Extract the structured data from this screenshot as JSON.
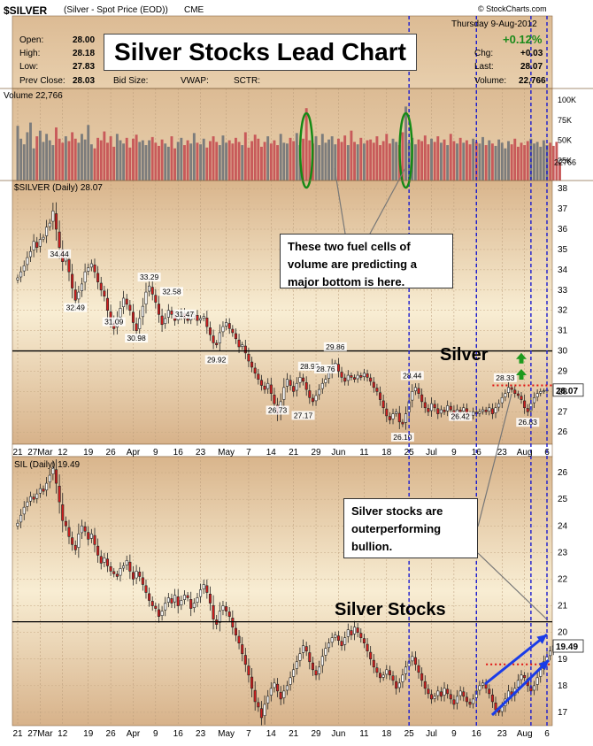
{
  "header": {
    "symbol": "$SILVER",
    "description": "(Silver - Spot Price (EOD))",
    "exchange": "CME",
    "source": "© StockCharts.com",
    "date": "Thursday  9-Aug-2012",
    "open_label": "Open:",
    "open": "28.00",
    "high_label": "High:",
    "high": "28.18",
    "low_label": "Low:",
    "low": "27.83",
    "prev_label": "Prev Close:",
    "prev": "28.03",
    "bid_label": "Bid Size:",
    "vwap_label": "VWAP:",
    "sctr_label": "SCTR:",
    "change_pct": "+0.12%",
    "chg_label": "Chg:",
    "chg": "+0.03",
    "last_label": "Last:",
    "last": "28.07",
    "volume_label": "Volume:",
    "volume": "22,766"
  },
  "title": "Silver Stocks Lead Chart",
  "callouts": {
    "volume": "These two fuel cells of volume are predicting a major bottom is here.",
    "stocks": "Silver stocks are outerperforming bullion.",
    "silver_label": "Silver",
    "stocks_label": "Silver Stocks"
  },
  "panels": {
    "volume_label": "Volume 22,766",
    "volume_last": "22766",
    "silver_label": "$SILVER (Daily) 28.07",
    "silver_last": "28.07",
    "sil_label": "SIL (Daily) 19.49",
    "sil_last": "19.49"
  },
  "colors": {
    "background_band": "#d8b68e",
    "panel_tint_light": "#f7ecd0",
    "up_candle": "#ffffff",
    "down_candle": "#d01e1e",
    "volume_up": "#7c7c7c",
    "volume_down": "#c85a5a",
    "dashed_blue": "#1a1ad0",
    "green_ellipse": "#158a15",
    "arrow_blue": "#1a3ce8",
    "arrow_green": "#1d9a1d",
    "red_dotted": "#e01010"
  },
  "chart_data": [
    {
      "type": "bar",
      "name": "volume",
      "ylabel": "Volume",
      "ytick_labels": [
        "100K",
        "75K",
        "50K",
        "25K"
      ],
      "values": [
        68000,
        52000,
        45000,
        60000,
        72000,
        40000,
        55000,
        62000,
        48000,
        58000,
        50000,
        44000,
        66000,
        52000,
        47000,
        55000,
        49000,
        60000,
        52000,
        47000,
        58000,
        51000,
        69000,
        45000,
        40000,
        53000,
        50000,
        61000,
        47000,
        55000,
        42000,
        58000,
        50000,
        46000,
        53000,
        41000,
        52000,
        57000,
        48000,
        50000,
        44000,
        50000,
        54000,
        47000,
        43000,
        51000,
        46000,
        42000,
        55000,
        40000,
        48000,
        53000,
        44000,
        50000,
        46000,
        59000,
        47000,
        45000,
        52000,
        41000,
        49000,
        55000,
        48000,
        44000,
        56000,
        47000,
        50000,
        46000,
        53000,
        48000,
        44000,
        60000,
        41000,
        49000,
        57000,
        52000,
        42000,
        48000,
        55000,
        46000,
        50000,
        44000,
        58000,
        47000,
        46000,
        53000,
        49000,
        59000,
        44000,
        52000,
        90000,
        50000,
        46000,
        55000,
        44000,
        58000,
        47000,
        51000,
        55000,
        45000,
        52000,
        48000,
        56000,
        44000,
        62000,
        48000,
        45000,
        53000,
        46000,
        50000,
        51000,
        47000,
        55000,
        44000,
        49000,
        58000,
        46000,
        52000,
        48000,
        44000,
        60000,
        92000,
        47000,
        53000,
        45000,
        51000,
        49000,
        56000,
        45000,
        52000,
        48000,
        55000,
        47000,
        51000,
        44000,
        58000,
        49000,
        46000,
        53000,
        47000,
        50000,
        45000,
        52000,
        48000,
        46000,
        54000,
        44000,
        50000,
        46000,
        43000,
        51000,
        47000,
        40000,
        49000,
        45000,
        52000,
        42000,
        47000,
        44000,
        49000,
        52000,
        46000,
        48000,
        42000,
        50000,
        44000,
        47000,
        43000,
        48000,
        22766
      ]
    },
    {
      "type": "line",
      "name": "$SILVER (Daily)",
      "x_labels": [
        "21",
        "27Mar",
        "12",
        "19",
        "26",
        "Apr",
        "9",
        "16",
        "23",
        "May",
        "7",
        "14",
        "21",
        "29",
        "Jun",
        "11",
        "18",
        "25",
        "Jul",
        "9",
        "16",
        "23",
        "Aug",
        "6"
      ],
      "ylim": [
        25.4,
        38.4
      ],
      "ytick_labels": [
        "38",
        "37",
        "36",
        "35",
        "34",
        "33",
        "32",
        "31",
        "30",
        "29",
        "28",
        "27",
        "26"
      ],
      "annotations": [
        "34.44",
        "32.49",
        "33.29",
        "32.58",
        "31.09",
        "30.98",
        "31.47",
        "29.92",
        "29.86",
        "28.90",
        "28.76",
        "27.17",
        "26.73",
        "28.44",
        "28.33",
        "26.10",
        "26.42",
        "26.83"
      ],
      "reference_level": 30,
      "values": [
        33.6,
        33.9,
        34.2,
        34.6,
        34.9,
        35.4,
        35.1,
        35.5,
        35.6,
        36.1,
        36.3,
        36.9,
        36.0,
        35.1,
        34.4,
        34.6,
        33.9,
        33.1,
        32.5,
        32.9,
        33.3,
        33.9,
        34.1,
        34.3,
        33.9,
        33.4,
        33.0,
        32.7,
        32.0,
        31.5,
        31.1,
        31.6,
        32.1,
        32.6,
        32.3,
        32.0,
        31.4,
        31.0,
        31.6,
        32.2,
        32.9,
        33.2,
        32.8,
        32.4,
        31.8,
        31.3,
        31.6,
        32.0,
        31.8,
        31.5,
        31.7,
        31.9,
        31.6,
        31.5,
        31.7,
        31.8,
        31.5,
        31.6,
        31.7,
        31.2,
        30.8,
        30.4,
        30.3,
        30.9,
        31.2,
        31.4,
        31.1,
        30.9,
        30.6,
        30.2,
        30.3,
        29.9,
        29.5,
        29.2,
        28.9,
        28.6,
        28.3,
        28.1,
        28.4,
        27.9,
        27.4,
        26.9,
        27.5,
        28.2,
        28.6,
        28.3,
        28.0,
        28.4,
        28.7,
        28.5,
        28.1,
        27.7,
        27.5,
        27.8,
        28.1,
        28.4,
        28.6,
        28.9,
        29.3,
        29.4,
        29.0,
        28.7,
        28.5,
        28.8,
        28.7,
        28.6,
        28.8,
        28.7,
        28.9,
        28.7,
        28.5,
        28.2,
        28.0,
        27.6,
        27.2,
        26.8,
        26.6,
        26.9,
        27.0,
        26.5,
        26.4,
        26.9,
        27.5,
        28.0,
        28.2,
        27.9,
        27.5,
        27.2,
        27.0,
        27.4,
        27.2,
        26.9,
        27.1,
        27.0,
        27.3,
        27.1,
        26.8,
        27.1,
        27.0,
        27.2,
        26.9,
        26.8,
        27.0,
        26.9,
        27.0,
        27.1,
        27.0,
        27.2,
        26.9,
        27.2,
        27.4,
        27.7,
        27.9,
        28.2,
        28.1,
        27.9,
        27.8,
        27.6,
        27.2,
        27.0,
        27.4,
        27.7,
        27.9,
        28.0,
        28.03,
        28.07
      ]
    },
    {
      "type": "line",
      "name": "SIL (Daily)",
      "x_labels": [
        "21",
        "27Mar",
        "12",
        "19",
        "26",
        "Apr",
        "9",
        "16",
        "23",
        "May",
        "7",
        "14",
        "21",
        "29",
        "Jun",
        "11",
        "18",
        "25",
        "Jul",
        "9",
        "16",
        "23",
        "Aug",
        "6"
      ],
      "ylim": [
        16.5,
        26.6
      ],
      "ytick_labels": [
        "26",
        "25",
        "24",
        "23",
        "22",
        "21",
        "20",
        "19",
        "18",
        "17"
      ],
      "reference_level": 20.4,
      "values": [
        24.1,
        24.4,
        24.7,
        24.9,
        25.1,
        25.0,
        25.2,
        25.4,
        25.3,
        25.6,
        25.9,
        26.2,
        25.6,
        24.9,
        24.2,
        24.0,
        23.6,
        23.3,
        23.1,
        23.7,
        24.0,
        23.8,
        23.5,
        23.7,
        23.3,
        22.9,
        22.6,
        22.8,
        22.5,
        22.3,
        22.2,
        22.1,
        22.4,
        22.5,
        22.7,
        22.3,
        22.0,
        22.3,
        22.1,
        21.8,
        21.5,
        21.2,
        21.0,
        20.9,
        20.6,
        20.8,
        21.1,
        21.3,
        21.1,
        21.4,
        21.0,
        21.2,
        21.4,
        21.3,
        20.9,
        21.1,
        21.3,
        21.6,
        21.8,
        21.5,
        21.1,
        20.5,
        20.3,
        20.8,
        21.0,
        20.8,
        20.6,
        20.2,
        19.9,
        19.6,
        19.2,
        18.8,
        18.4,
        17.9,
        17.4,
        17.2,
        16.8,
        17.3,
        17.6,
        17.9,
        18.1,
        17.8,
        17.5,
        17.8,
        18.0,
        18.3,
        18.6,
        18.9,
        19.2,
        19.5,
        19.3,
        18.9,
        18.6,
        18.4,
        18.7,
        19.1,
        19.4,
        19.6,
        19.8,
        19.9,
        19.7,
        19.5,
        19.8,
        20.1,
        19.9,
        20.2,
        20.0,
        19.8,
        19.6,
        19.3,
        19.0,
        18.7,
        18.5,
        18.3,
        18.4,
        18.6,
        18.4,
        18.2,
        17.9,
        18.1,
        18.4,
        18.7,
        18.9,
        19.1,
        18.8,
        18.5,
        18.2,
        17.9,
        17.7,
        17.5,
        17.6,
        17.8,
        17.6,
        17.9,
        17.7,
        17.5,
        17.3,
        17.6,
        17.8,
        17.6,
        17.4,
        17.3,
        17.5,
        17.8,
        18.0,
        18.1,
        17.9,
        17.7,
        17.4,
        17.1,
        17.0,
        17.2,
        17.5,
        17.8,
        17.6,
        17.9,
        18.2,
        18.4,
        18.3,
        18.0,
        17.8,
        18.0,
        18.3,
        18.6,
        18.9,
        19.1,
        19.3,
        19.49
      ]
    }
  ]
}
